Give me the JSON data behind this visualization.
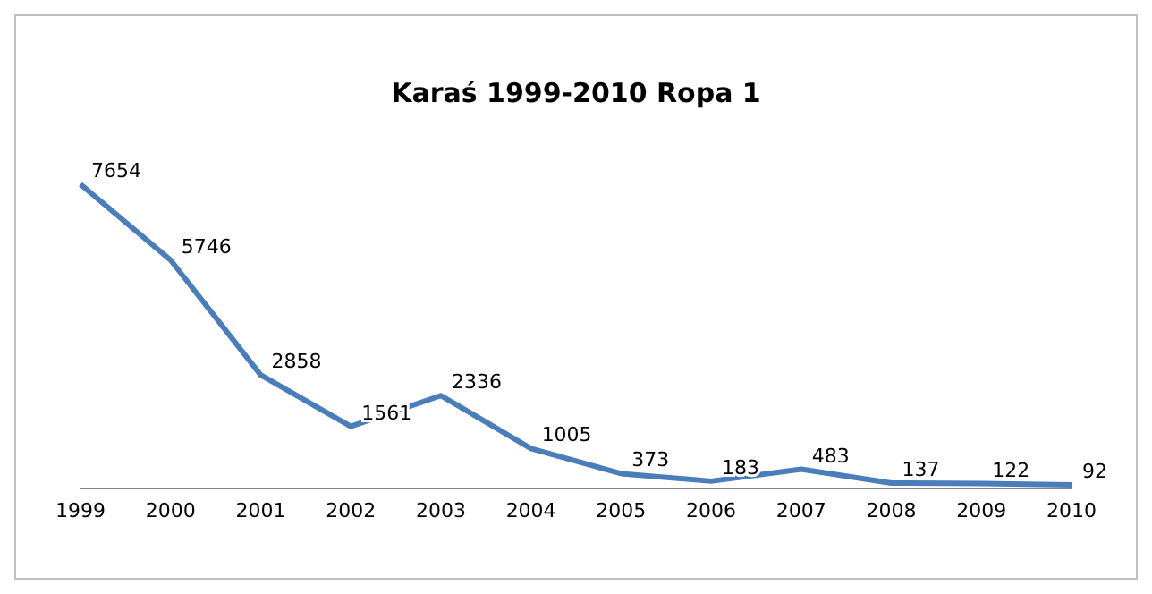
{
  "chart_data": {
    "type": "line",
    "title": "Karaś 1999-2010 Ropa 1",
    "categories": [
      "1999",
      "2000",
      "2001",
      "2002",
      "2003",
      "2004",
      "2005",
      "2006",
      "2007",
      "2008",
      "2009",
      "2010"
    ],
    "series": [
      {
        "color": "#4a7ebb",
        "values": [
          7654,
          5746,
          2858,
          1561,
          2336,
          1005,
          373,
          183,
          483,
          137,
          122,
          92
        ]
      }
    ],
    "data_labels": true,
    "tick_labels": "x",
    "marker": "none",
    "line_style": "solid"
  }
}
